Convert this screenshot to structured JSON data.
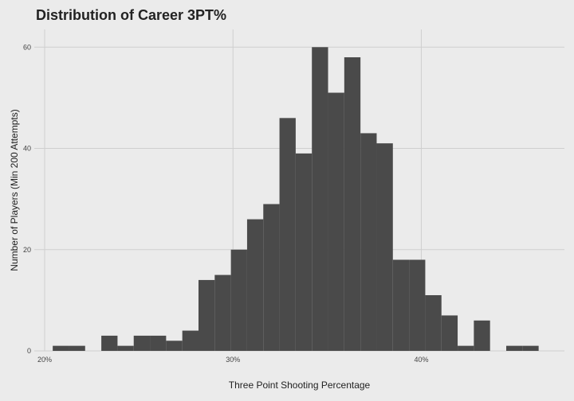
{
  "chart_data": {
    "type": "bar",
    "title": "Distribution of Career 3PT%",
    "xlabel": "Three Point Shooting Percentage",
    "ylabel": "Number of Players (Min 200 Attempts)",
    "xlim": [
      19.45,
      47.6
    ],
    "ylim": [
      0,
      63.5
    ],
    "bin_width": 0.86,
    "bin_start": 20.43,
    "counts": [
      1,
      1,
      0,
      3,
      1,
      3,
      3,
      2,
      4,
      14,
      15,
      20,
      26,
      29,
      46,
      39,
      60,
      51,
      58,
      43,
      41,
      18,
      18,
      11,
      7,
      1,
      6,
      0,
      1,
      1
    ],
    "x_ticks": [
      20,
      30,
      40
    ],
    "x_tick_labels": [
      "20%",
      "30%",
      "40%"
    ],
    "y_ticks": [
      0,
      20,
      40,
      60
    ],
    "y_tick_labels": [
      "0",
      "20",
      "40",
      "60"
    ],
    "grid": true,
    "colors": {
      "background": "#ebebeb",
      "bar": "#4a4a4a",
      "grid": "#cfcfcf"
    }
  }
}
